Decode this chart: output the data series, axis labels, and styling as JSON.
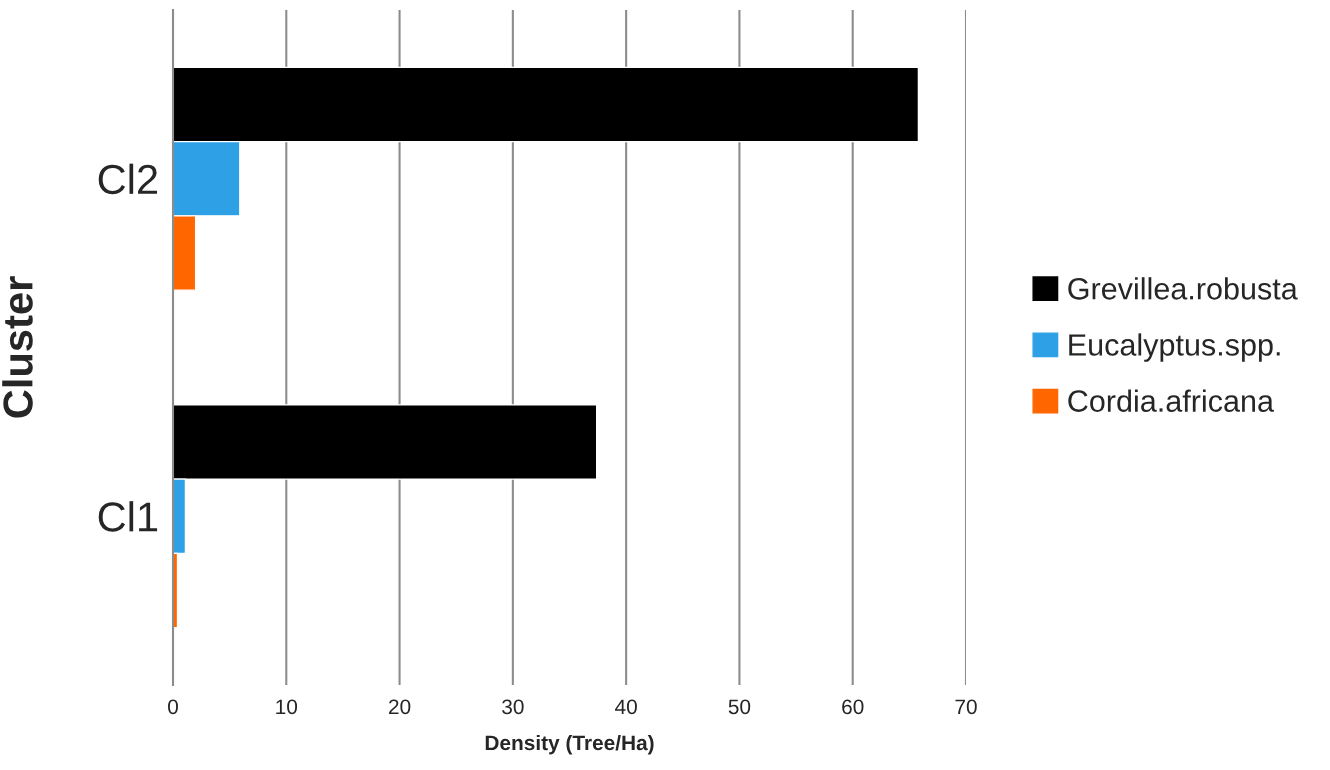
{
  "chart_data": {
    "type": "bar",
    "orientation": "horizontal",
    "xlabel": "Density (Tree/Ha)",
    "ylabel": "Cluster",
    "categories": [
      "Cl2",
      "Cl1"
    ],
    "series": [
      {
        "name": "Grevillea.robusta",
        "color": "#000000",
        "values": [
          65.8,
          37.4
        ]
      },
      {
        "name": "Eucalyptus.spp.",
        "color": "#2ea1e6",
        "values": [
          5.9,
          1.1
        ]
      },
      {
        "name": "Cordia.africana",
        "color": "#ff6600",
        "values": [
          2.0,
          0.4
        ]
      }
    ],
    "xlim": [
      0,
      70
    ],
    "xticks": [
      0,
      10,
      20,
      30,
      40,
      50,
      60,
      70
    ],
    "grid": "x",
    "legend": "right"
  }
}
